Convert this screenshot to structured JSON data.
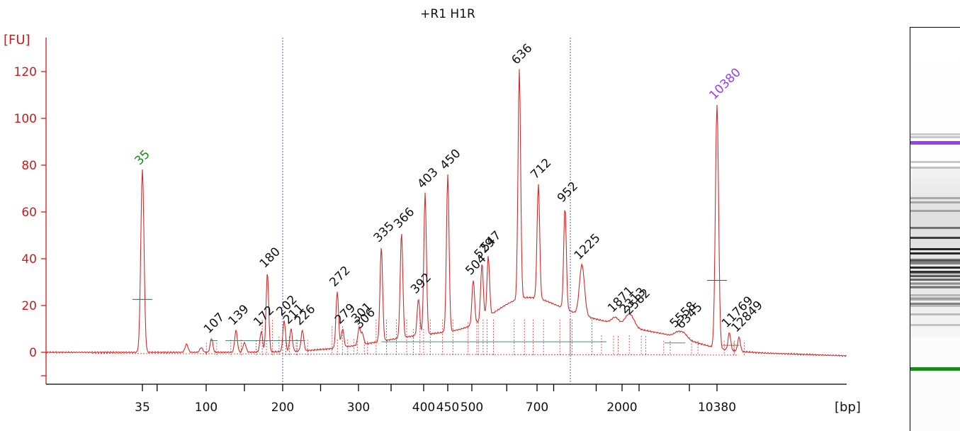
{
  "chart_data": {
    "type": "line",
    "title": "+R1 H1R",
    "ylabel": "[FU]",
    "xlabel": "[bp]",
    "ylim": [
      -12,
      128
    ],
    "y_ticks": [
      0,
      20,
      40,
      60,
      80,
      100,
      120
    ],
    "x_tick_labels": [
      "35",
      "100",
      "200",
      "300",
      "400",
      "450",
      "500",
      "700",
      "2000",
      "10380"
    ],
    "colors": {
      "trace": "#d42a2a",
      "axis": "#d21a1a",
      "lower_marker": "#1a8a1a",
      "upper_marker": "#9a3cf0",
      "gridline": "#5555dd"
    },
    "peaks": [
      {
        "label": "35",
        "x": 35,
        "y": 78,
        "marker": "lower"
      },
      {
        "label": "107",
        "x": 107,
        "y": 6
      },
      {
        "label": "139",
        "x": 139,
        "y": 9.5
      },
      {
        "label": "172",
        "x": 172,
        "y": 9
      },
      {
        "label": "180",
        "x": 180,
        "y": 34
      },
      {
        "label": "202",
        "x": 202,
        "y": 13.5
      },
      {
        "label": "211",
        "x": 211,
        "y": 10
      },
      {
        "label": "226",
        "x": 226,
        "y": 9.5
      },
      {
        "label": "272",
        "x": 272,
        "y": 26
      },
      {
        "label": "279",
        "x": 279,
        "y": 10
      },
      {
        "label": "301",
        "x": 301,
        "y": 10.5
      },
      {
        "label": "306",
        "x": 306,
        "y": 8
      },
      {
        "label": "335",
        "x": 335,
        "y": 45
      },
      {
        "label": "366",
        "x": 366,
        "y": 51
      },
      {
        "label": "392",
        "x": 392,
        "y": 23
      },
      {
        "label": "403",
        "x": 403,
        "y": 68
      },
      {
        "label": "450",
        "x": 450,
        "y": 76
      },
      {
        "label": "504",
        "x": 504,
        "y": 31
      },
      {
        "label": "529",
        "x": 529,
        "y": 38
      },
      {
        "label": "547",
        "x": 547,
        "y": 41
      },
      {
        "label": "636",
        "x": 636,
        "y": 121
      },
      {
        "label": "712",
        "x": 712,
        "y": 72
      },
      {
        "label": "952",
        "x": 952,
        "y": 62
      },
      {
        "label": "1225",
        "x": 1225,
        "y": 37.5
      },
      {
        "label": "1871",
        "x": 1871,
        "y": 15
      },
      {
        "label": "2313",
        "x": 2313,
        "y": 14.5
      },
      {
        "label": "2582",
        "x": 2582,
        "y": 14
      },
      {
        "label": "5558",
        "x": 5558,
        "y": 8.5
      },
      {
        "label": "6345",
        "x": 6345,
        "y": 8
      },
      {
        "label": "10380",
        "x": 10380,
        "y": 106,
        "marker": "upper"
      },
      {
        "label": "11769",
        "x": 11769,
        "y": 8.5
      },
      {
        "label": "12849",
        "x": 12849,
        "y": 6.5
      }
    ]
  }
}
